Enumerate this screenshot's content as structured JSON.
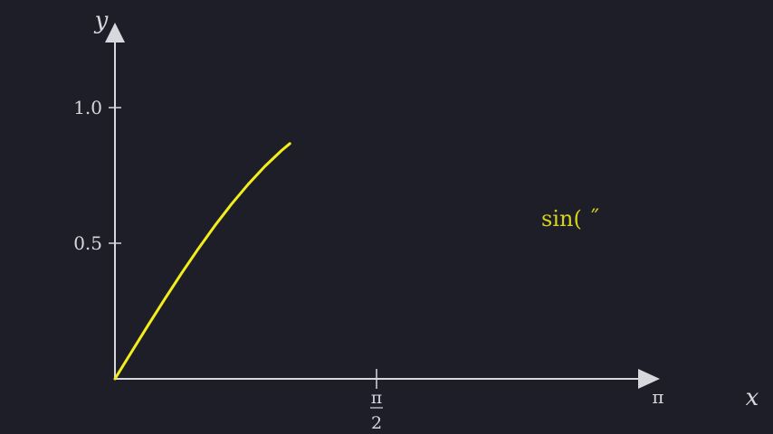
{
  "colors": {
    "background": "#1e1e28",
    "axis": "#d7d7de",
    "curve": "#f2ee1c",
    "curve_label": "#d6d21a"
  },
  "chart_data": {
    "type": "line",
    "xlabel": "x",
    "ylabel": "y",
    "xlim": [
      0,
      3.14159
    ],
    "ylim": [
      0,
      1.0
    ],
    "y_axis_top": 1.2,
    "y_ticks": [
      {
        "value": 0.5,
        "label": "0.5"
      },
      {
        "value": 1.0,
        "label": "1.0"
      }
    ],
    "x_ticks": [
      {
        "value": 1.5708,
        "label_num": "π",
        "label_den": "2"
      }
    ],
    "x_end_label": "π",
    "series": [
      {
        "function": "sin",
        "x": [
          0,
          0.1,
          0.2,
          0.3,
          0.4,
          0.5,
          0.6,
          0.7,
          0.8,
          0.9,
          1.0,
          1.05
        ],
        "y": [
          0,
          0.0998,
          0.1987,
          0.2955,
          0.3894,
          0.4794,
          0.5646,
          0.6442,
          0.7174,
          0.7833,
          0.8415,
          0.8674
        ]
      }
    ],
    "annotation": "sin( ˝"
  }
}
